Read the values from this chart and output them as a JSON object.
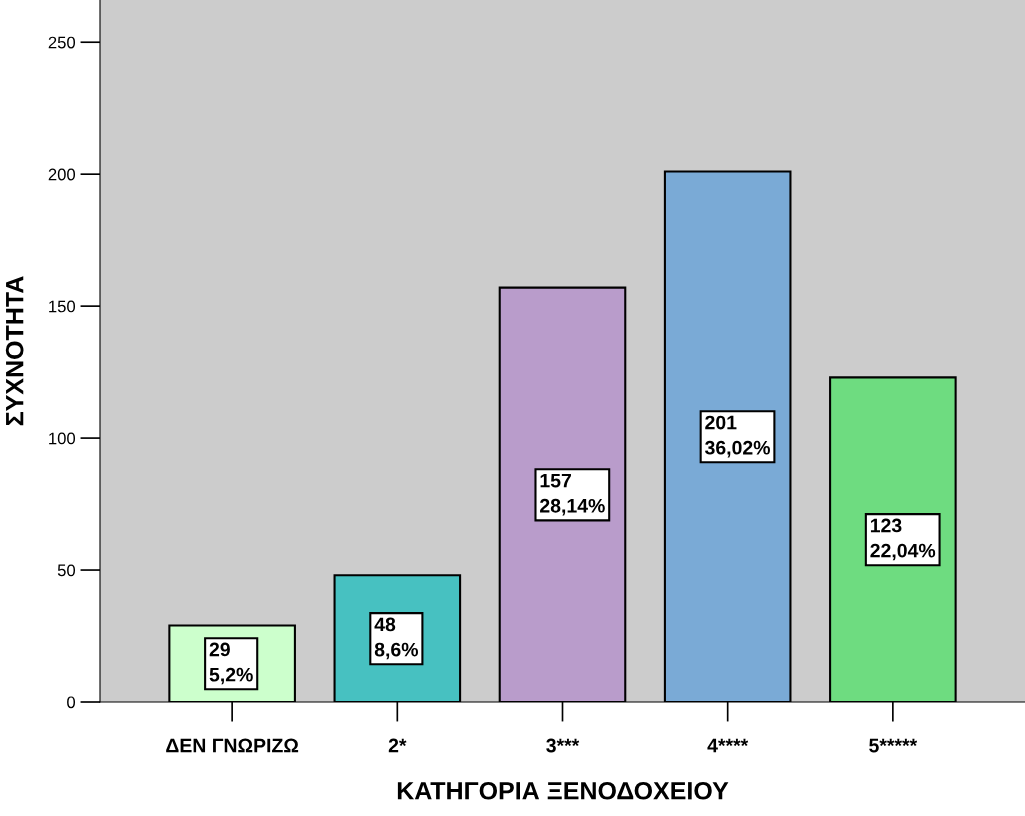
{
  "chart_data": {
    "type": "bar",
    "categories": [
      "ΔΕΝ ΓΝΩΡΙΖΩ",
      "2*",
      "3***",
      "4****",
      "5*****"
    ],
    "values": [
      29,
      48,
      157,
      201,
      123
    ],
    "colors": [
      "#ccffcc",
      "#47c1c1",
      "#b99ccb",
      "#7aaad6",
      "#6edc80"
    ],
    "value_labels": [
      "29\n5,2%",
      "48\n8,6%",
      "157\n28,14%",
      "201\n36,02%",
      "123\n22,04%"
    ],
    "xlabel": "ΚΑΤΗΓΟΡΙΑ ΞΕΝΟΔΟΧΕΙΟΥ",
    "ylabel": "ΣΥΧΝΟΤΗΤΑ",
    "ylim": [
      0,
      266
    ],
    "yticks": [
      0,
      50,
      100,
      150,
      200,
      250
    ],
    "grid": false
  }
}
